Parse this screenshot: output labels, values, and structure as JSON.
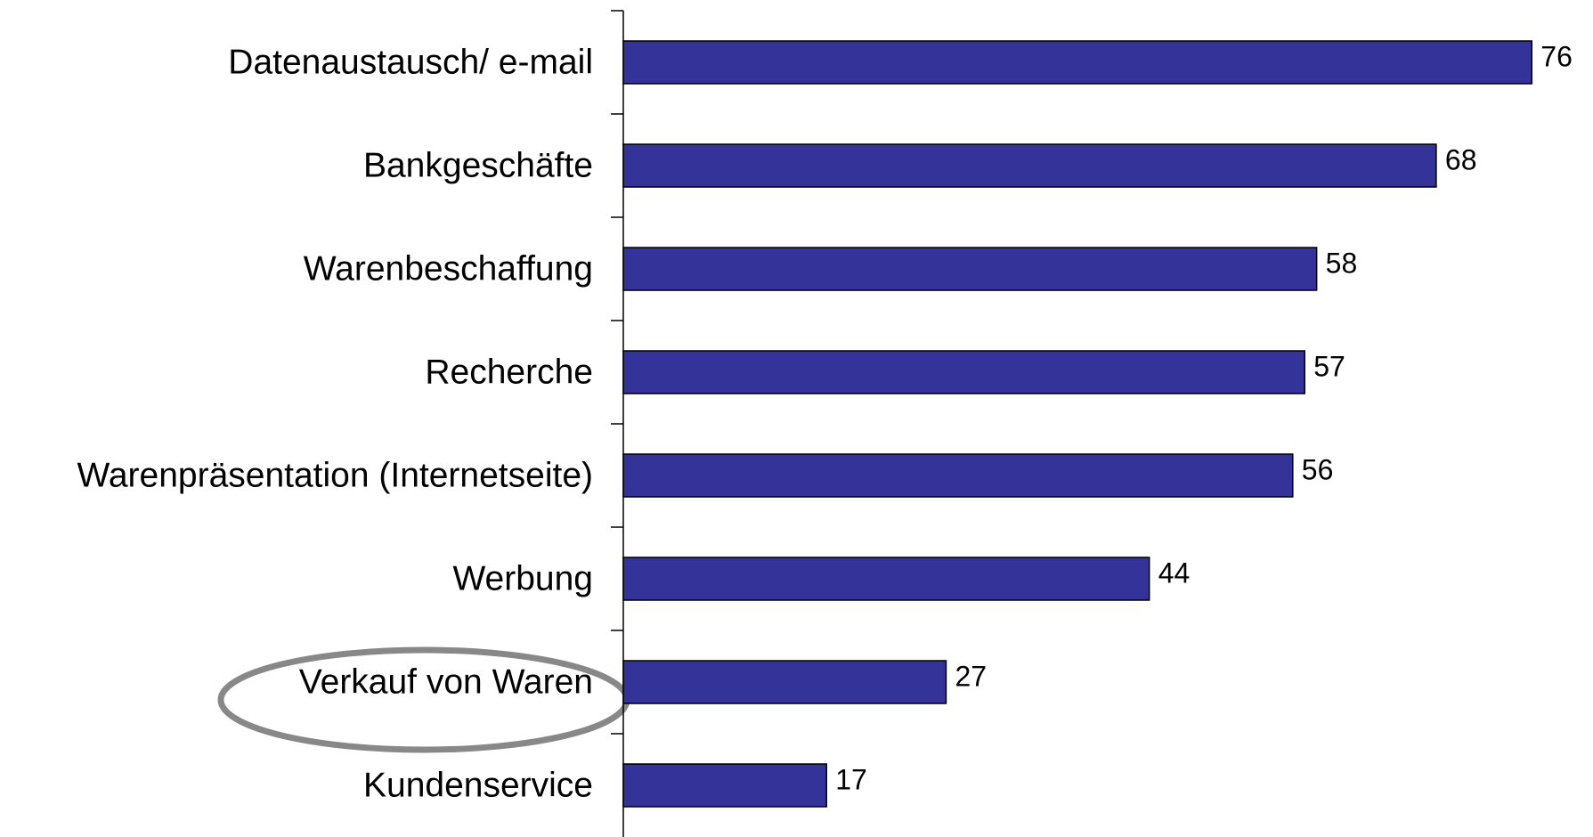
{
  "chart_data": {
    "type": "bar",
    "orientation": "horizontal",
    "categories": [
      "Datenaustausch/ e-mail",
      "Bankgeschäfte",
      "Warenbeschaffung",
      "Recherche",
      "Warenpräsentation (Internetseite)",
      "Werbung",
      "Verkauf von Waren",
      "Kundenservice"
    ],
    "values": [
      76,
      68,
      58,
      57,
      56,
      44,
      27,
      17
    ],
    "color": "#333399",
    "xlim": [
      0,
      80
    ]
  }
}
